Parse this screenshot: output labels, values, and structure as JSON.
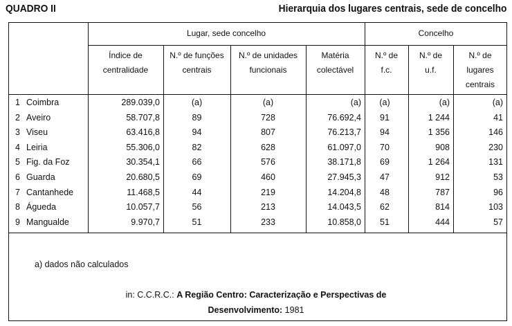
{
  "title_left": "QUADRO II",
  "title_right": "Hierarquia dos lugares centrais, sede de concelho",
  "group_headers": {
    "lugar": "Lugar, sede concelho",
    "concelho": "Concelho"
  },
  "columns": [
    [
      "Índice de",
      "centralidade"
    ],
    [
      "N.º de funções",
      "centrais"
    ],
    [
      "N.º de unidades",
      "funcionais"
    ],
    [
      "Matéria",
      "colectável"
    ],
    [
      "N.º de",
      "f.c."
    ],
    [
      "N.º de",
      "u.f."
    ],
    [
      "N.º de",
      "lugares",
      "centrais"
    ]
  ],
  "rows": [
    [
      "1",
      "Coimbra",
      "289.039,0",
      "(a)",
      "(a)",
      "(a)",
      "(a)",
      "(a)",
      "(a)"
    ],
    [
      "2",
      "Aveiro",
      "58.707,8",
      "89",
      "728",
      "76.692,4",
      "91",
      "1 244",
      "41"
    ],
    [
      "3",
      "Viseu",
      "63.416,8",
      "94",
      "807",
      "76.213,7",
      "94",
      "1 356",
      "146"
    ],
    [
      "4",
      "Leiria",
      "55.306,0",
      "82",
      "628",
      "61.097,0",
      "70",
      "908",
      "230"
    ],
    [
      "5",
      "Fig. da Foz",
      "30.354,1",
      "66",
      "576",
      "38.171,8",
      "69",
      "1 264",
      "131"
    ],
    [
      "6",
      "Guarda",
      "20.680,5",
      "69",
      "460",
      "27.945,3",
      "47",
      "912",
      "53"
    ],
    [
      "7",
      "Cantanhede",
      "11.468,5",
      "44",
      "219",
      "14.204,8",
      "48",
      "787",
      "96"
    ],
    [
      "8",
      "Águeda",
      "10.057,7",
      "56",
      "213",
      "14.043,5",
      "62",
      "814",
      "103"
    ],
    [
      "9",
      "Mangualde",
      "9.970,7",
      "51",
      "233",
      "10.858,0",
      "51",
      "444",
      "57"
    ]
  ],
  "footnote": "a) dados não calculados",
  "source": {
    "prefix": "in: C.C.R.C.: ",
    "title1": "A Região Centro: Caracterização e Perspectivas de",
    "title2": "Desenvolvimento:",
    "year": "1981"
  }
}
